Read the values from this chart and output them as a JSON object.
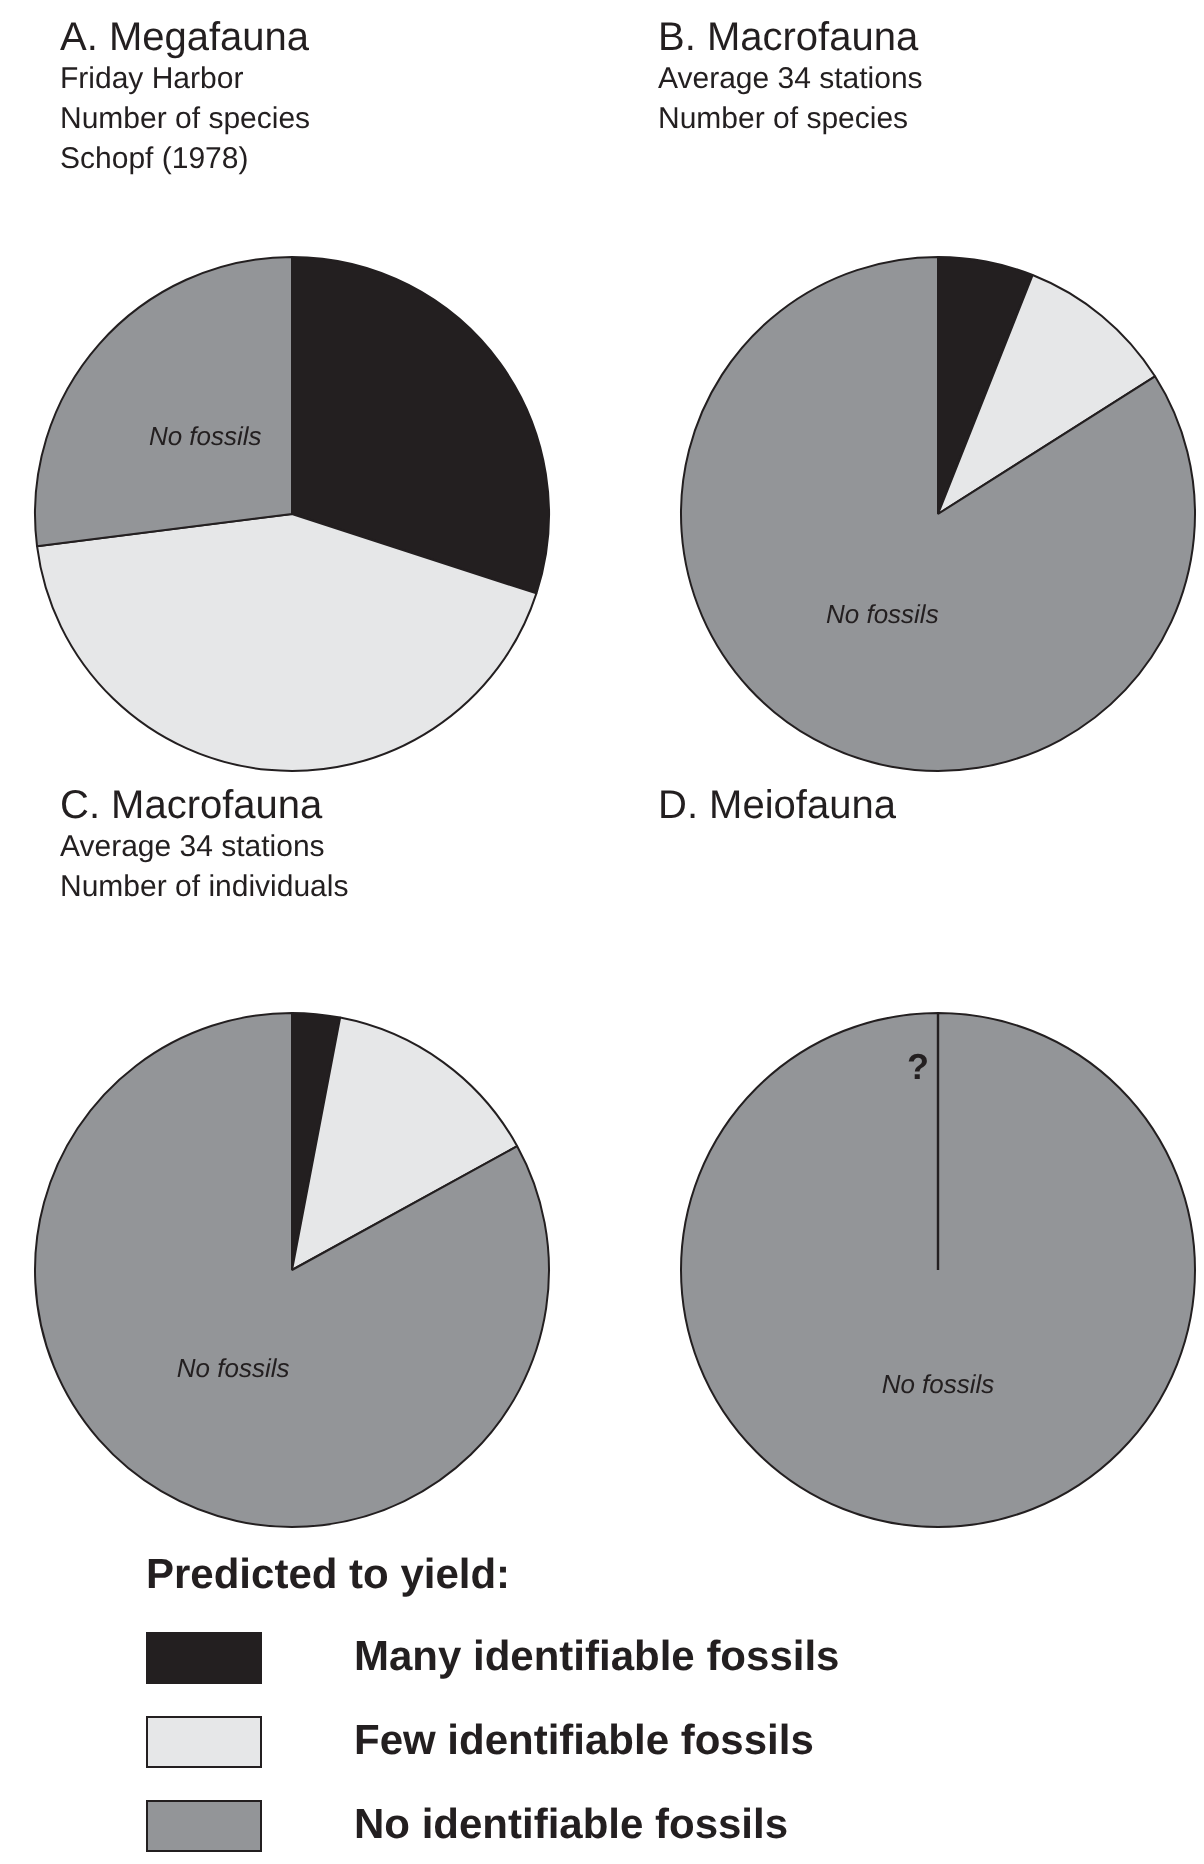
{
  "chart_data": [
    {
      "type": "pie",
      "title": "A.  Megafauna",
      "subtitle": "Friday Harbor\nNumber of species\nSchopf (1978)",
      "categories": [
        null,
        null,
        null
      ],
      "values": [
        30,
        43,
        27
      ],
      "colors": [
        "#231f20",
        "#e6e7e8",
        "#939598"
      ],
      "annotations": [
        "No fossils"
      ]
    },
    {
      "type": "pie",
      "title": "B.  Macrofauna",
      "subtitle": "Average 34 stations\nNumber of species",
      "categories": [
        null,
        null,
        null
      ],
      "values": [
        6,
        10,
        84
      ],
      "colors": [
        "#231f20",
        "#e6e7e8",
        "#939598"
      ],
      "annotations": [
        "No fossils"
      ]
    },
    {
      "type": "pie",
      "title": "C.  Macrofauna",
      "subtitle": "Average 34 stations\nNumber of individuals",
      "categories": [
        null,
        null,
        null
      ],
      "values": [
        3,
        14,
        83
      ],
      "colors": [
        "#231f20",
        "#e6e7e8",
        "#939598"
      ],
      "annotations": [
        "No fossils"
      ]
    },
    {
      "type": "pie",
      "title": "D.  Meiofauna",
      "categories": [
        "Many identifiable fossils",
        "Few identifiable fossils",
        "No identifiable fossils"
      ],
      "values": [
        0,
        0,
        100
      ],
      "colors": [
        "#231f20",
        "#e6e7e8",
        "#939598"
      ],
      "annotations": [
        {
          "text": "No fossils",
          "x": "No identifiable fossils"
        },
        {
          "text": "?",
          "x": "Many identifiable fossils"
        }
      ],
      "needle": "No identifiable fossils",
      "legend": "bottom",
      "legend_title": "Predicted to yield:"
    }
  ]
}
